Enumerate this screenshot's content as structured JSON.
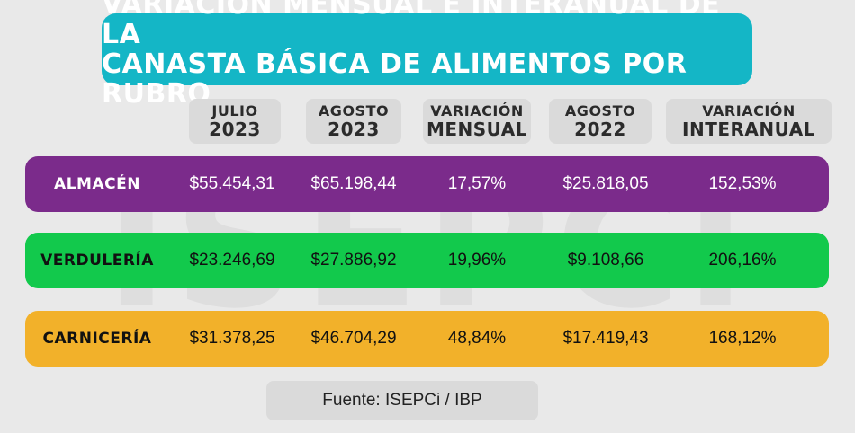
{
  "watermark": "ISEPCi",
  "title": {
    "line1": "VARIACIÓN MENSUAL E INTERANUAL DE LA",
    "line2": "CANASTA BÁSICA DE ALIMENTOS POR RUBRO"
  },
  "colors": {
    "title_bg": "#14b6c6",
    "almacen": "#7b2b8b",
    "verduleria": "#12c94c",
    "carniceria": "#f2b12a",
    "header_bg": "#dadada",
    "background": "#e9e9e9"
  },
  "chart_data": {
    "type": "table",
    "title": "VARIACIÓN MENSUAL E INTERANUAL DE LA CANASTA BÁSICA DE ALIMENTOS POR RUBRO",
    "columns": [
      {
        "line1": "JULIO",
        "line2": "2023"
      },
      {
        "line1": "AGOSTO",
        "line2": "2023"
      },
      {
        "line1": "VARIACIÓN",
        "line2": "MENSUAL"
      },
      {
        "line1": "AGOSTO",
        "line2": "2022"
      },
      {
        "line1": "VARIACIÓN",
        "line2": "INTERANUAL"
      }
    ],
    "rows": [
      {
        "name": "ALMACÉN",
        "values": [
          "$55.454,31",
          "$65.198,44",
          "17,57%",
          "$25.818,05",
          "152,53%"
        ]
      },
      {
        "name": "VERDULERÍA",
        "values": [
          "$23.246,69",
          "$27.886,92",
          "19,96%",
          "$9.108,66",
          "206,16%"
        ]
      },
      {
        "name": "CARNICERÍA",
        "values": [
          "$31.378,25",
          "$46.704,29",
          "48,84%",
          "$17.419,43",
          "168,12%"
        ]
      }
    ]
  },
  "source": "Fuente: ISEPCi / IBP"
}
